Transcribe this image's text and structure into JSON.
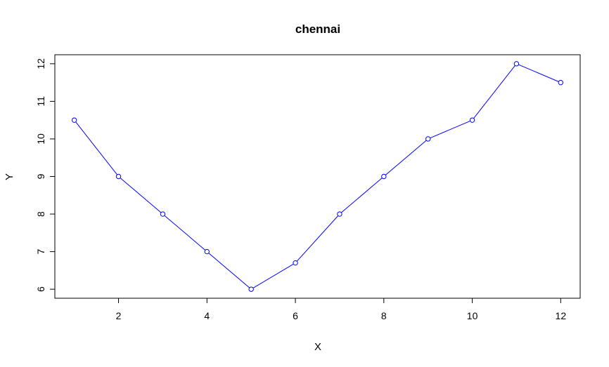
{
  "chart_data": {
    "type": "line",
    "title": "chennai",
    "xlabel": "X",
    "ylabel": "Y",
    "xlim": [
      0.56,
      12.44
    ],
    "ylim": [
      5.76,
      12.24
    ],
    "x_ticks": [
      2,
      4,
      6,
      8,
      10,
      12
    ],
    "y_ticks": [
      6,
      7,
      8,
      9,
      10,
      11,
      12
    ],
    "x": [
      1,
      2,
      3,
      4,
      5,
      6,
      7,
      8,
      9,
      10,
      11,
      12
    ],
    "series": [
      {
        "values": [
          10.5,
          9,
          8,
          7,
          6,
          6.7,
          8,
          9,
          10,
          10.5,
          12,
          11.5
        ],
        "color": "#0000ff",
        "marker": "open-circle"
      }
    ],
    "grid": false,
    "legend": "none",
    "box_color": "#000000"
  }
}
